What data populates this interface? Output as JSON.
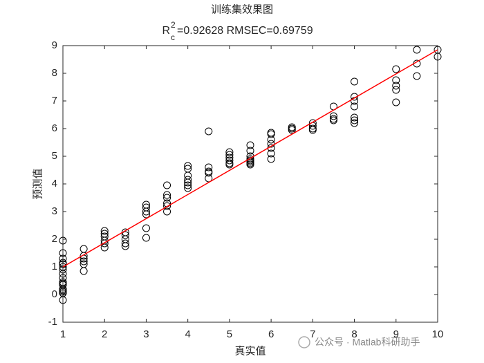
{
  "chart_data": {
    "type": "scatter",
    "title": "训练集效果图",
    "subtitle": {
      "base": "R",
      "sup": "2",
      "sub": "c",
      "rest": "=0.92628  RMSEC=0.69759"
    },
    "x_label": "真实值",
    "y_label": "预测值",
    "watermark": "公众号 · Matlab科研助手",
    "xlim": [
      1,
      10
    ],
    "xticks": [
      1,
      2,
      3,
      4,
      5,
      6,
      7,
      8,
      9,
      10
    ],
    "ylim": [
      -1,
      9
    ],
    "yticks": [
      -1,
      0,
      1,
      2,
      3,
      4,
      5,
      6,
      7,
      8,
      9
    ],
    "grid": false,
    "series": [
      {
        "style": "marker",
        "color": "#000000",
        "x": [
          1,
          1,
          1,
          1,
          1,
          1,
          1,
          1,
          1,
          1,
          1,
          1,
          1,
          1,
          1,
          1,
          1,
          1.5,
          1.5,
          1.5,
          1.5,
          1.5,
          1.5,
          2,
          2,
          2,
          2,
          2,
          2,
          2.5,
          2.5,
          2.5,
          2.5,
          2.5,
          3,
          3,
          3,
          3,
          3,
          3,
          3.5,
          3.5,
          3.5,
          3.5,
          3.5,
          3.5,
          4,
          4,
          4,
          4,
          4,
          4,
          4,
          4.5,
          4.5,
          4.5,
          4.5,
          4.5,
          5,
          5,
          5,
          5,
          5,
          5,
          5.5,
          5.5,
          5.5,
          5.5,
          5.5,
          5.5,
          5.5,
          5.5,
          6,
          6,
          6,
          6,
          6,
          6,
          6,
          6.5,
          6.5,
          6.5,
          7,
          7,
          7,
          7,
          7.5,
          7.5,
          7.5,
          7.5,
          8,
          8,
          8,
          8,
          8,
          8,
          8,
          9,
          9,
          9,
          9,
          9,
          9.5,
          9.5,
          9.5,
          10,
          10
        ],
        "values": [
          1.95,
          1.5,
          1.3,
          1.15,
          1.1,
          1.0,
          0.9,
          0.75,
          0.6,
          0.45,
          0.35,
          0.2,
          0.1,
          0.05,
          -0.2,
          0.4,
          0.15,
          1.65,
          1.4,
          1.3,
          1.2,
          1.1,
          0.85,
          2.3,
          2.2,
          2.1,
          1.95,
          1.85,
          1.7,
          2.25,
          2.15,
          2.0,
          1.85,
          1.75,
          3.25,
          3.15,
          3.0,
          2.9,
          2.4,
          2.05,
          3.95,
          3.6,
          3.5,
          3.3,
          3.2,
          3.0,
          4.65,
          4.55,
          4.3,
          4.15,
          4.05,
          3.95,
          3.85,
          5.9,
          4.6,
          4.45,
          4.4,
          4.2,
          5.15,
          5.05,
          4.95,
          4.85,
          4.75,
          4.7,
          5.4,
          5.2,
          5.0,
          4.9,
          4.85,
          4.8,
          4.75,
          4.7,
          5.85,
          5.8,
          5.6,
          5.45,
          5.3,
          5.1,
          4.9,
          6.05,
          6.0,
          5.95,
          6.2,
          6.1,
          6.0,
          5.95,
          6.8,
          6.45,
          6.35,
          6.3,
          7.7,
          7.15,
          7.0,
          6.8,
          6.4,
          6.3,
          6.2,
          8.15,
          7.75,
          7.55,
          7.4,
          6.95,
          8.85,
          8.35,
          7.9,
          8.85,
          8.6
        ]
      },
      {
        "style": "line",
        "color": "#ff0000",
        "x": [
          1,
          10
        ],
        "values": [
          1.0,
          8.85
        ]
      }
    ]
  }
}
